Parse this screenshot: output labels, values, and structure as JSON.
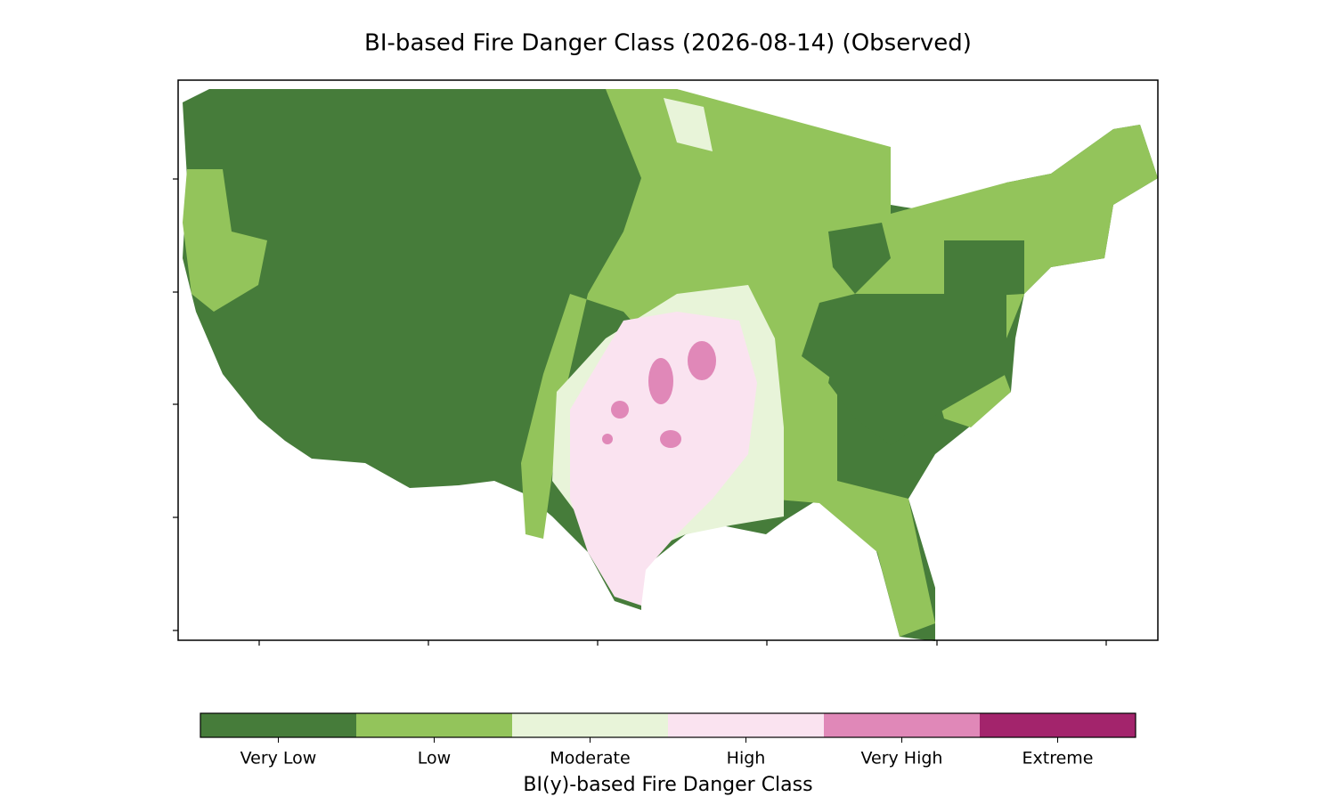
{
  "title": "BI-based Fire Danger Class (2026-08-14) (Observed)",
  "colorbar": {
    "label": "BI(y)-based Fire Danger Class",
    "classes": [
      {
        "name": "Very Low",
        "color": "#467c3a"
      },
      {
        "name": "Low",
        "color": "#93c45b"
      },
      {
        "name": "Moderate",
        "color": "#e8f4d9"
      },
      {
        "name": "High",
        "color": "#fae3f0"
      },
      {
        "name": "Very High",
        "color": "#e088b8"
      },
      {
        "name": "Extreme",
        "color": "#a3246c"
      }
    ]
  }
}
